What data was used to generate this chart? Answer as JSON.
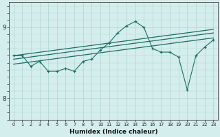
{
  "xlabel": "Humidex (Indice chaleur)",
  "x_values": [
    0,
    1,
    2,
    3,
    4,
    5,
    6,
    7,
    8,
    9,
    10,
    11,
    12,
    13,
    14,
    15,
    16,
    17,
    18,
    19,
    20,
    21,
    22,
    23
  ],
  "y_main": [
    8.6,
    8.6,
    8.45,
    8.52,
    8.38,
    8.38,
    8.42,
    8.38,
    8.52,
    8.55,
    8.68,
    8.78,
    8.92,
    9.02,
    9.08,
    9.0,
    8.7,
    8.65,
    8.65,
    8.58,
    8.12,
    8.6,
    8.72,
    8.82
  ],
  "ylim": [
    7.7,
    9.35
  ],
  "yticks": [
    8,
    9
  ],
  "xlim": [
    -0.5,
    23.5
  ],
  "background_color": "#d4eeed",
  "line_color": "#1a6e63",
  "grid_color": "#afd4d2",
  "reg1_start": 8.55,
  "reg1_end": 8.92,
  "reg2_start": 8.48,
  "reg2_end": 8.85,
  "reg3_start": 8.6,
  "reg3_end": 8.97
}
